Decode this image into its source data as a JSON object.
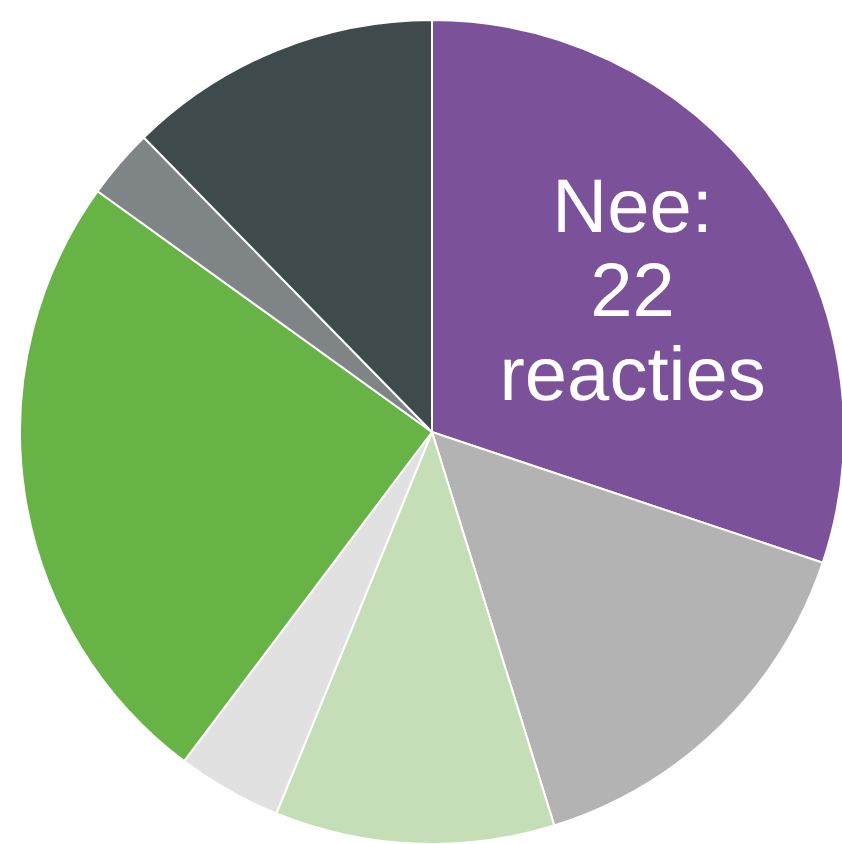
{
  "chart_data": {
    "type": "pie",
    "categories": [
      null,
      null,
      null,
      null,
      null,
      null,
      null
    ],
    "values": [
      22,
      11,
      8,
      3,
      18,
      2,
      9
    ],
    "colors": [
      "#7b5199",
      "#b3b3b3",
      "#c6deb7",
      "#e1e1e1",
      "#67b346",
      "#7f8486",
      "#3e4a4c"
    ],
    "value_labels": [
      "Nee: 22 reacties",
      null,
      null,
      null,
      null,
      null,
      null
    ]
  }
}
